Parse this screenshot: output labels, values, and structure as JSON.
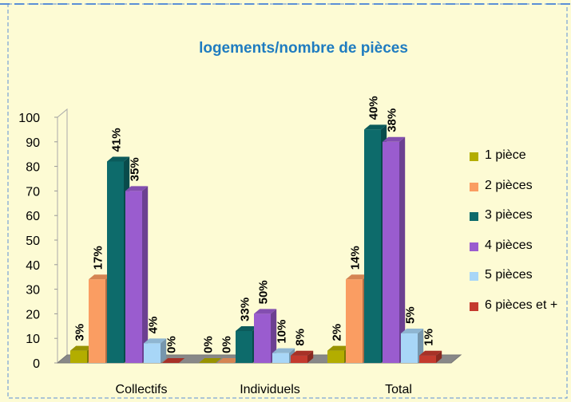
{
  "chart_data": {
    "type": "bar3d",
    "title": "logements/nombre de pièces",
    "categories": [
      "Collectifs",
      "Individuels",
      "Total"
    ],
    "series": [
      {
        "name": "1 pièce",
        "color": "#b3ad00",
        "values": [
          5,
          0,
          5
        ],
        "value_labels": [
          "3%",
          "0%",
          "2%"
        ]
      },
      {
        "name": "2 pièces",
        "color": "#fa9d62",
        "values": [
          34,
          0,
          34
        ],
        "value_labels": [
          "17%",
          "0%",
          "14%"
        ]
      },
      {
        "name": "3 pièces",
        "color": "#0d6b6b",
        "values": [
          82,
          13,
          95
        ],
        "value_labels": [
          "41%",
          "33%",
          "40%"
        ]
      },
      {
        "name": "4 pièces",
        "color": "#9a5ccf",
        "values": [
          70,
          20,
          90
        ],
        "value_labels": [
          "35%",
          "50%",
          "38%"
        ]
      },
      {
        "name": "5 pièces",
        "color": "#a8d6f7",
        "values": [
          8,
          4,
          12
        ],
        "value_labels": [
          "4%",
          "10%",
          "5%"
        ]
      },
      {
        "name": "6 pièces et +",
        "color": "#c43a2e",
        "values": [
          0,
          3,
          3
        ],
        "value_labels": [
          "0%",
          "8%",
          "1%"
        ]
      }
    ],
    "ylim": [
      0,
      100
    ],
    "yticks": [
      0,
      10,
      20,
      30,
      40,
      50,
      60,
      70,
      80,
      90,
      100
    ],
    "legend": "right"
  }
}
